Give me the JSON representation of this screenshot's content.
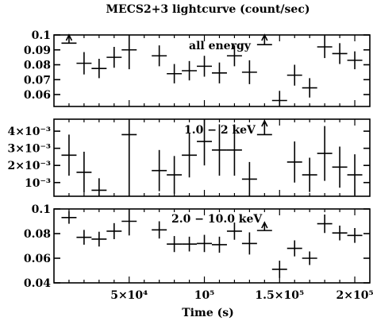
{
  "chart_data": [
    {
      "type": "scatter",
      "title": "MECS2+3 lightcurve (count/sec)",
      "annotation": "all energy",
      "ylim": [
        0.052,
        0.1
      ],
      "ytick_labels": [
        "0.1",
        "0.09",
        "0.08",
        "0.07",
        "0.06"
      ],
      "ytick_values": [
        0.1,
        0.09,
        0.08,
        0.07,
        0.06
      ],
      "points": [
        {
          "x": 10000,
          "y": 0.0945,
          "yerr": 0.007,
          "upper_limit": true
        },
        {
          "x": 20000,
          "y": 0.081,
          "yerr": 0.0075
        },
        {
          "x": 30000,
          "y": 0.0775,
          "yerr": 0.0065
        },
        {
          "x": 40000,
          "y": 0.085,
          "yerr": 0.007
        },
        {
          "x": 50000,
          "y": 0.09,
          "yerr": 0.013
        },
        {
          "x": 70000,
          "y": 0.086,
          "yerr": 0.007
        },
        {
          "x": 80000,
          "y": 0.074,
          "yerr": 0.0065
        },
        {
          "x": 90000,
          "y": 0.076,
          "yerr": 0.0065
        },
        {
          "x": 100000,
          "y": 0.079,
          "yerr": 0.007
        },
        {
          "x": 110000,
          "y": 0.0745,
          "yerr": 0.007
        },
        {
          "x": 120000,
          "y": 0.086,
          "yerr": 0.007
        },
        {
          "x": 130000,
          "y": 0.075,
          "yerr": 0.008
        },
        {
          "x": 140000,
          "y": 0.0935,
          "yerr": 0.007,
          "upper_limit": true
        },
        {
          "x": 150000,
          "y": 0.056,
          "yerr": 0.0065
        },
        {
          "x": 160000,
          "y": 0.073,
          "yerr": 0.007
        },
        {
          "x": 170000,
          "y": 0.0645,
          "yerr": 0.0065
        },
        {
          "x": 180000,
          "y": 0.092,
          "yerr": 0.0075
        },
        {
          "x": 190000,
          "y": 0.0875,
          "yerr": 0.007
        },
        {
          "x": 200000,
          "y": 0.083,
          "yerr": 0.006
        }
      ]
    },
    {
      "type": "scatter",
      "annotation": "1.0 − 2 keV",
      "ylim": [
        0.0002,
        0.0047
      ],
      "ytick_labels": [
        "4×10⁻³",
        "3×10⁻³",
        "2×10⁻³",
        "10⁻³"
      ],
      "ytick_values": [
        0.004,
        0.003,
        0.002,
        0.001
      ],
      "points": [
        {
          "x": 10000,
          "y": 0.0026,
          "yerr": 0.0012
        },
        {
          "x": 20000,
          "y": 0.0016,
          "yerr": 0.0012
        },
        {
          "x": 30000,
          "y": 0.00055,
          "yerr": 0.0007
        },
        {
          "x": 50000,
          "y": 0.0038,
          "yerr": 0.004
        },
        {
          "x": 70000,
          "y": 0.0017,
          "yerr": 0.0012
        },
        {
          "x": 80000,
          "y": 0.00145,
          "yerr": 0.0011
        },
        {
          "x": 90000,
          "y": 0.0026,
          "yerr": 0.0013
        },
        {
          "x": 100000,
          "y": 0.0034,
          "yerr": 0.0014
        },
        {
          "x": 110000,
          "y": 0.0029,
          "yerr": 0.0015
        },
        {
          "x": 120000,
          "y": 0.0029,
          "yerr": 0.0015
        },
        {
          "x": 130000,
          "y": 0.0012,
          "yerr": 0.001
        },
        {
          "x": 140000,
          "y": 0.0038,
          "yerr": 0.0008,
          "upper_limit": true
        },
        {
          "x": 160000,
          "y": 0.0022,
          "yerr": 0.0012
        },
        {
          "x": 170000,
          "y": 0.00145,
          "yerr": 0.001
        },
        {
          "x": 180000,
          "y": 0.0027,
          "yerr": 0.0016
        },
        {
          "x": 190000,
          "y": 0.0019,
          "yerr": 0.0012
        },
        {
          "x": 200000,
          "y": 0.00145,
          "yerr": 0.0012
        }
      ]
    },
    {
      "type": "scatter",
      "annotation": "2.0 − 10.0 keV",
      "xlabel": "Time (s)",
      "xlim": [
        0,
        210000
      ],
      "xtick_labels": [
        "5×10⁴",
        "10⁵",
        "1.5×10⁵",
        "2×10⁵"
      ],
      "xtick_values": [
        50000,
        100000,
        150000,
        200000
      ],
      "ylim": [
        0.04,
        0.1
      ],
      "ytick_labels": [
        "0.1",
        "0.08",
        "0.06",
        "0.04"
      ],
      "ytick_values": [
        0.1,
        0.08,
        0.06,
        0.04
      ],
      "points": [
        {
          "x": 10000,
          "y": 0.093,
          "yerr": 0.005
        },
        {
          "x": 20000,
          "y": 0.077,
          "yerr": 0.006
        },
        {
          "x": 30000,
          "y": 0.0755,
          "yerr": 0.006
        },
        {
          "x": 40000,
          "y": 0.082,
          "yerr": 0.0065
        },
        {
          "x": 50000,
          "y": 0.09,
          "yerr": 0.0115
        },
        {
          "x": 70000,
          "y": 0.083,
          "yerr": 0.007
        },
        {
          "x": 80000,
          "y": 0.0715,
          "yerr": 0.0065
        },
        {
          "x": 90000,
          "y": 0.0715,
          "yerr": 0.006
        },
        {
          "x": 100000,
          "y": 0.072,
          "yerr": 0.007
        },
        {
          "x": 110000,
          "y": 0.071,
          "yerr": 0.0065
        },
        {
          "x": 120000,
          "y": 0.082,
          "yerr": 0.007
        },
        {
          "x": 130000,
          "y": 0.072,
          "yerr": 0.009
        },
        {
          "x": 140000,
          "y": 0.0825,
          "yerr": 0.0065,
          "upper_limit": true
        },
        {
          "x": 150000,
          "y": 0.051,
          "yerr": 0.007
        },
        {
          "x": 160000,
          "y": 0.068,
          "yerr": 0.0065
        },
        {
          "x": 170000,
          "y": 0.06,
          "yerr": 0.0055
        },
        {
          "x": 180000,
          "y": 0.088,
          "yerr": 0.0075
        },
        {
          "x": 190000,
          "y": 0.0805,
          "yerr": 0.006
        },
        {
          "x": 200000,
          "y": 0.0785,
          "yerr": 0.006
        }
      ]
    }
  ]
}
